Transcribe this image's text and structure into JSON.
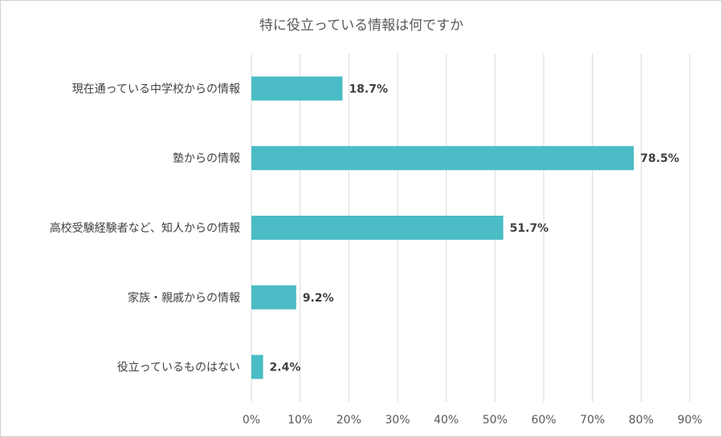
{
  "chart_data": {
    "type": "bar",
    "orientation": "horizontal",
    "title": "特に役立っている情報は何ですか",
    "categories": [
      "現在通っている中学校からの情報",
      "塾からの情報",
      "高校受験経験者など、知人からの情報",
      "家族・親戚からの情報",
      "役立っているものはない"
    ],
    "values": [
      18.7,
      78.5,
      51.7,
      9.2,
      2.4
    ],
    "data_labels": [
      "18.7%",
      "78.5%",
      "51.7%",
      "9.2%",
      "2.4%"
    ],
    "x_ticks": [
      "0%",
      "10%",
      "20%",
      "30%",
      "40%",
      "50%",
      "60%",
      "70%",
      "80%",
      "90%"
    ],
    "xlim": [
      0,
      90
    ],
    "grid": true,
    "legend": "none",
    "bar_color": "#4bbcc5"
  }
}
